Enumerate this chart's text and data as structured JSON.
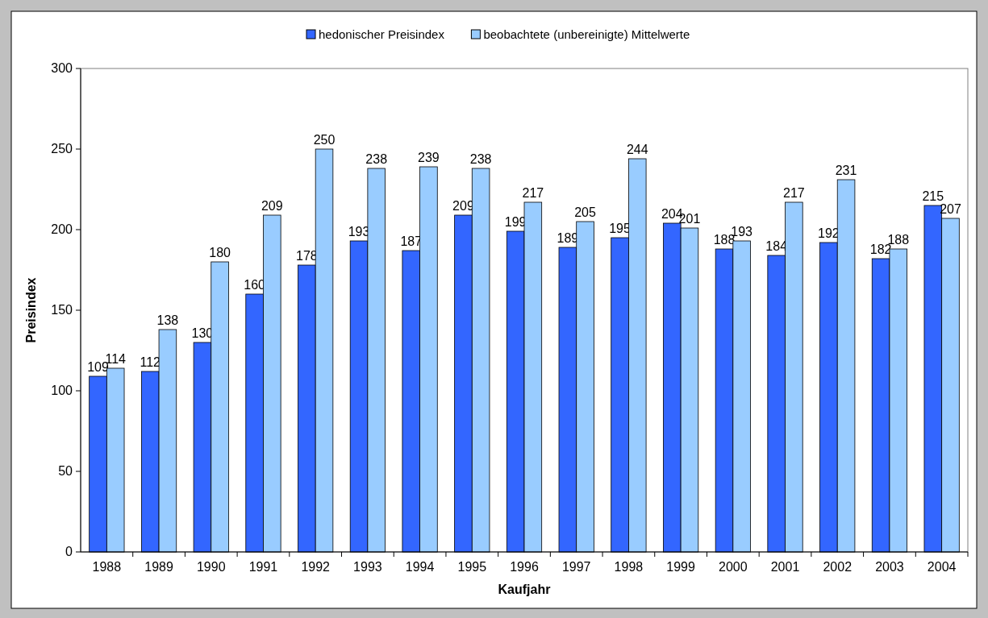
{
  "chart_data": {
    "type": "bar",
    "xlabel": "Kaufjahr",
    "ylabel": "Preisindex",
    "categories": [
      "1988",
      "1989",
      "1990",
      "1991",
      "1992",
      "1993",
      "1994",
      "1995",
      "1996",
      "1997",
      "1998",
      "1999",
      "2000",
      "2001",
      "2002",
      "2003",
      "2004"
    ],
    "series": [
      {
        "name": "hedonischer Preisindex",
        "color": "#3366ff",
        "values": [
          109,
          112,
          130,
          160,
          178,
          193,
          187,
          209,
          199,
          189,
          195,
          204,
          188,
          184,
          192,
          182,
          215
        ]
      },
      {
        "name": "beobachtete (unbereinigte) Mittelwerte",
        "color": "#99ccff",
        "values": [
          114,
          138,
          180,
          209,
          250,
          238,
          239,
          238,
          217,
          205,
          244,
          201,
          193,
          217,
          231,
          188,
          207
        ]
      }
    ],
    "ylim": [
      0,
      300
    ],
    "yticks": [
      0,
      50,
      100,
      150,
      200,
      250,
      300
    ],
    "data_labels": true,
    "legend": "top",
    "grid": false
  }
}
